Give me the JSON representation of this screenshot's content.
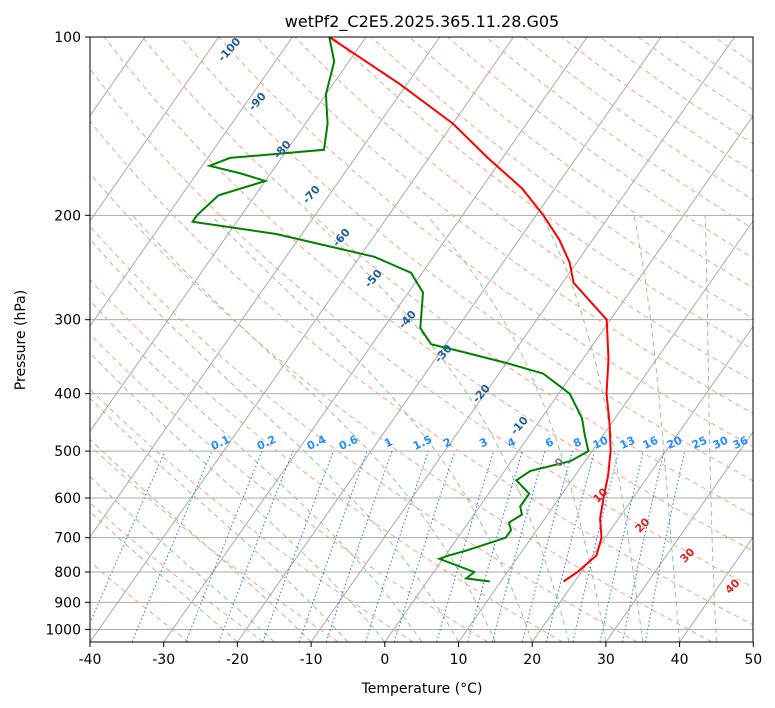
{
  "chart_data": {
    "type": "line",
    "subtype": "skew-T log-P diagram",
    "title": "wetPf2_C2E5.2025.365.11.28.G05",
    "xlabel": "Temperature (°C)",
    "ylabel": "Pressure (hPa)",
    "xlim": [
      -40,
      50
    ],
    "ylim": [
      1050,
      100
    ],
    "y_scale": "log",
    "x_ticks": [
      -40,
      -30,
      -20,
      -10,
      0,
      10,
      20,
      30,
      40,
      50
    ],
    "y_ticks": [
      1000,
      900,
      800,
      700,
      600,
      500,
      400,
      300,
      200,
      100
    ],
    "grid": true,
    "series": [
      {
        "color": "#ff0000",
        "p": [
          830,
          800,
          750,
          700,
          650,
          600,
          550,
          500,
          450,
          400,
          350,
          300,
          260,
          240,
          220,
          200,
          180,
          160,
          140,
          120,
          100
        ],
        "t": [
          18.5,
          19.5,
          20.5,
          19.5,
          17.5,
          16.0,
          14.5,
          12.5,
          9.8,
          6.5,
          3.5,
          -0.5,
          -8.5,
          -11.0,
          -14.5,
          -19.0,
          -24.5,
          -32.0,
          -40.0,
          -51.0,
          -65.0
        ]
      },
      {
        "color": "#008000",
        "p": [
          830,
          820,
          800,
          760,
          750,
          735,
          700,
          680,
          660,
          640,
          620,
          590,
          560,
          540,
          520,
          500,
          470,
          440,
          400,
          370,
          355,
          340,
          330,
          310,
          270,
          250,
          235,
          215,
          205,
          200,
          185,
          175,
          170,
          165,
          160,
          155,
          140,
          125,
          110,
          100
        ],
        "t": [
          8.5,
          5.0,
          5.5,
          -0.5,
          0.5,
          2.5,
          6.5,
          6.5,
          5.5,
          6.5,
          5.5,
          5.5,
          2.5,
          3.5,
          8.0,
          9.5,
          7.5,
          5.5,
          1.5,
          -4.0,
          -10.0,
          -17.0,
          -22.0,
          -25.0,
          -28.0,
          -31.5,
          -38.0,
          -53.5,
          -66.0,
          -66.0,
          -65.0,
          -60.0,
          -64.0,
          -69.0,
          -67.0,
          -55.0,
          -57.0,
          -60.0,
          -62.0,
          -65.0
        ]
      }
    ],
    "dry_adiabat_labels": [
      "-100",
      "-90",
      "-80",
      "-70",
      "-60",
      "-50",
      "-40",
      "-30",
      "-20",
      "-10"
    ],
    "mixing_ratio_labels": [
      "0.1",
      "0.2",
      "0.4",
      "0.6",
      "1",
      "1.5",
      "2",
      "3",
      "4",
      "6",
      "8",
      "10",
      "13",
      "16",
      "20",
      "25",
      "30",
      "36"
    ],
    "moist_adiabat_labels": [
      "0",
      "10",
      "20",
      "30",
      "40"
    ],
    "colors": {
      "isotherm": "#aaaaaa",
      "isobar": "#aaaaaa",
      "dry_adiabat": "#f4a582",
      "moist_adiabat": "#8fc98f",
      "mixing_ratio": "#1f77e4",
      "dry_label": "#1f5f9f",
      "moist_label": "#d62728",
      "mixing_label": "#1f90ff",
      "zero_label": "#808080"
    }
  }
}
